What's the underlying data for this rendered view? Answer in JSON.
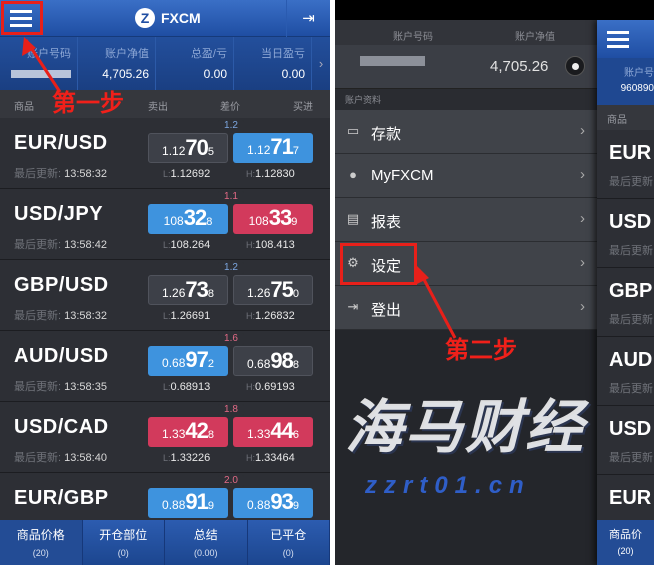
{
  "left": {
    "header": {
      "title": "FXCM",
      "logo_glyph": "Z",
      "menu_icon": "hamburger-icon",
      "exit_icon": "logout-icon"
    },
    "account": [
      {
        "label": "账户号码",
        "value": ""
      },
      {
        "label": "账户净值",
        "value": "4,705.26"
      },
      {
        "label": "总盈/亏",
        "value": "0.00"
      },
      {
        "label": "当日盈亏",
        "value": "0.00"
      }
    ],
    "columns": {
      "product": "商品",
      "sell": "卖出",
      "spread": "差价",
      "buy": "买进"
    },
    "update_label": "最后更新:",
    "rows": [
      {
        "symbol": "EUR/USD",
        "time": "13:58:32",
        "bid": [
          "1.12",
          "70",
          "5"
        ],
        "ask": [
          "1.12",
          "71",
          "7"
        ],
        "spread": "1.2",
        "low": "1.12692",
        "high": "1.12830",
        "bid_color": "gray",
        "ask_color": "blue"
      },
      {
        "symbol": "USD/JPY",
        "time": "13:58:42",
        "bid": [
          "108",
          "32",
          "8"
        ],
        "ask": [
          "108",
          "33",
          "9"
        ],
        "spread": "1.1",
        "low": "108.264",
        "high": "108.413",
        "bid_color": "blue",
        "ask_color": "red"
      },
      {
        "symbol": "GBP/USD",
        "time": "13:58:32",
        "bid": [
          "1.26",
          "73",
          "8"
        ],
        "ask": [
          "1.26",
          "75",
          "0"
        ],
        "spread": "1.2",
        "low": "1.26691",
        "high": "1.26832",
        "bid_color": "gray",
        "ask_color": "gray"
      },
      {
        "symbol": "AUD/USD",
        "time": "13:58:35",
        "bid": [
          "0.68",
          "97",
          "2"
        ],
        "ask": [
          "0.68",
          "98",
          "8"
        ],
        "spread": "1.6",
        "low": "0.68913",
        "high": "0.69193",
        "bid_color": "blue",
        "ask_color": "gray"
      },
      {
        "symbol": "USD/CAD",
        "time": "13:58:40",
        "bid": [
          "1.33",
          "42",
          "8"
        ],
        "ask": [
          "1.33",
          "44",
          "6"
        ],
        "spread": "1.8",
        "low": "1.33226",
        "high": "1.33464",
        "bid_color": "red",
        "ask_color": "red"
      },
      {
        "symbol": "EUR/GBP",
        "time": "",
        "bid": [
          "0.88",
          "91",
          "9"
        ],
        "ask": [
          "0.88",
          "93",
          "9"
        ],
        "spread": "2.0",
        "low": "",
        "high": "",
        "bid_color": "blue",
        "ask_color": "blue"
      }
    ],
    "low_prefix": "L:",
    "high_prefix": "H:",
    "tabs": [
      {
        "label": "商品价格",
        "count": "(20)"
      },
      {
        "label": "开仓部位",
        "count": "(0)"
      },
      {
        "label": "总结",
        "count": "(0.00)"
      },
      {
        "label": "已平仓",
        "count": "(0)"
      }
    ]
  },
  "right": {
    "header": {
      "account_no_label": "账户号码",
      "equity_label": "账户净值",
      "equity": "4,705.26"
    },
    "section_label": "账户资料",
    "menu": [
      {
        "label": "存款",
        "icon": "card-icon"
      },
      {
        "label": "MyFXCM",
        "icon": "user-icon"
      },
      {
        "label": "报表",
        "icon": "report-icon"
      },
      {
        "label": "设定",
        "icon": "gear-icon"
      },
      {
        "label": "登出",
        "icon": "logout-icon"
      }
    ],
    "peek": {
      "account_label": "账户号",
      "account_no": "960890",
      "product": "商品",
      "symbols": [
        "EUR",
        "USD",
        "GBP",
        "AUD",
        "USD",
        "EUR"
      ],
      "update_label": "最后更新",
      "tab": "商品价",
      "tab_count": "(20)"
    }
  },
  "annotations": {
    "step1": "第一步",
    "step2": "第二步",
    "color": "#e8201a"
  },
  "watermark": {
    "text": "海马财经",
    "url": "zzrt01.cn"
  },
  "colors": {
    "blue": "#3e93de",
    "red": "#d23a5c",
    "gray": "#3d4048",
    "header": "#1f4ea3"
  }
}
